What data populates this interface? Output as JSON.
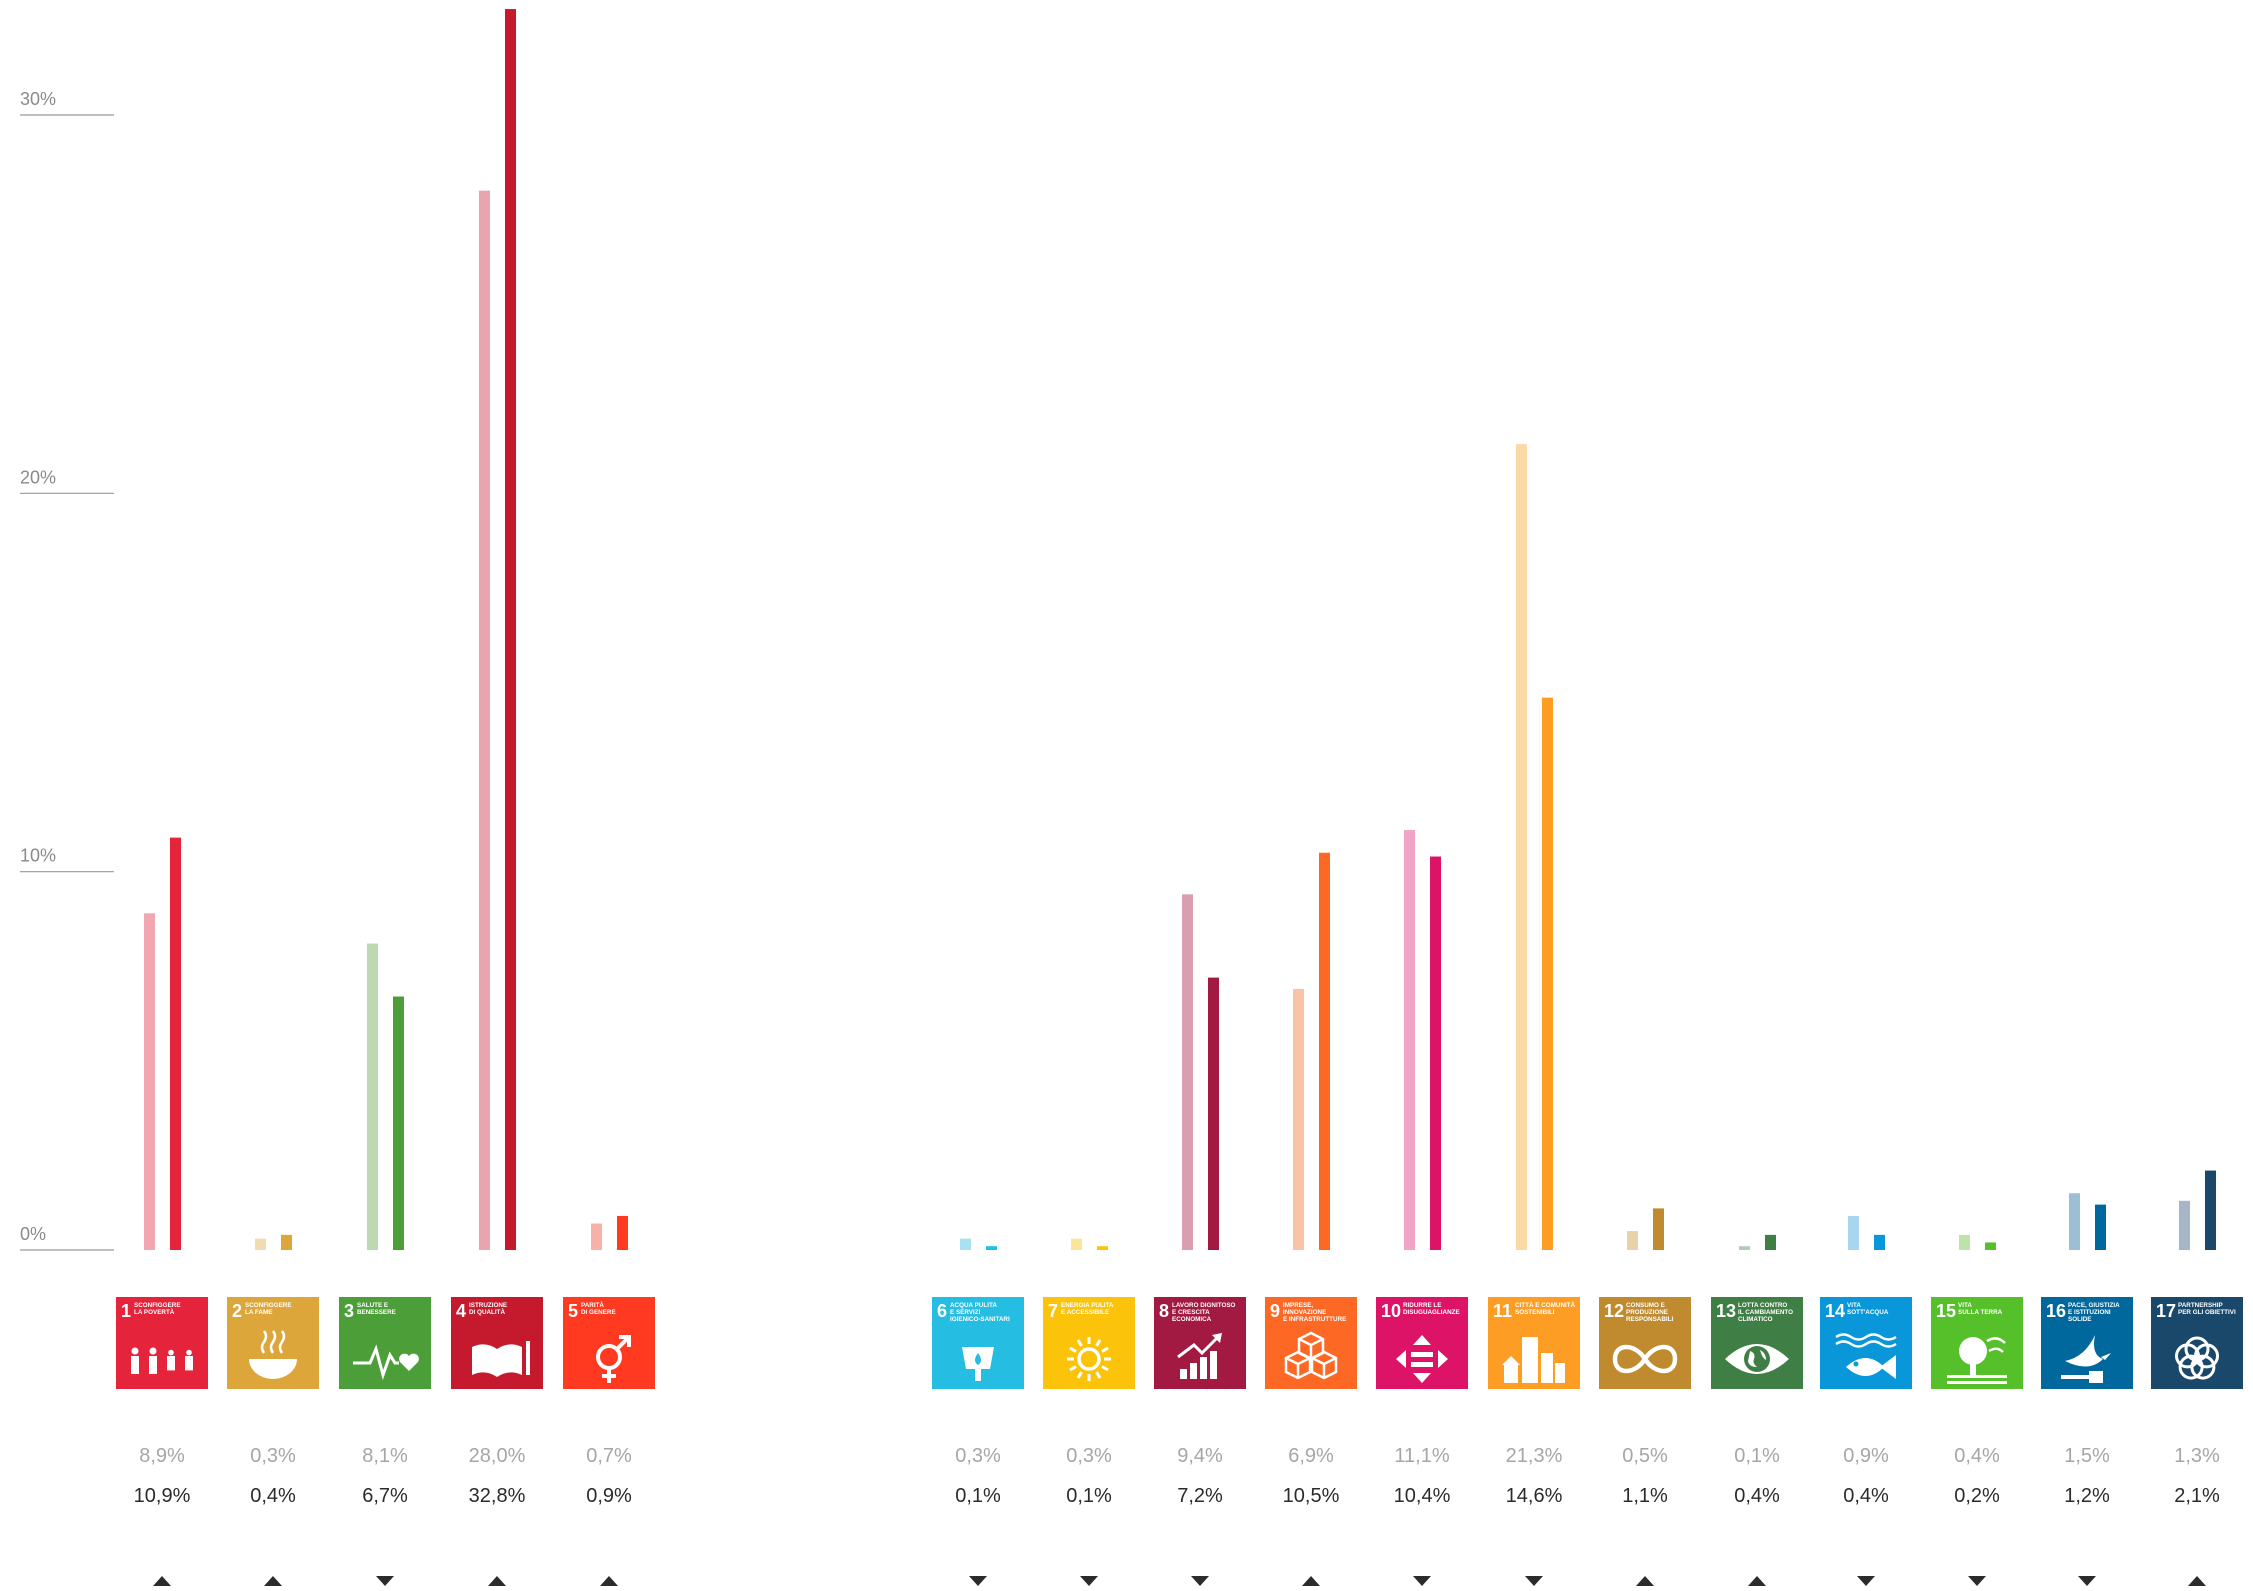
{
  "chart_data": {
    "type": "bar",
    "ylim": [
      0,
      32.8
    ],
    "y_ticks": [
      {
        "value": 30,
        "label": "30%"
      },
      {
        "value": 20,
        "label": "20%"
      },
      {
        "value": 10,
        "label": "10%"
      },
      {
        "value": 0,
        "label": "0%"
      }
    ],
    "grid": false,
    "series": [
      {
        "id": "previous",
        "values": [
          8.9,
          0.3,
          8.1,
          28.0,
          0.7,
          0.3,
          0.3,
          9.4,
          6.9,
          11.1,
          21.3,
          0.5,
          0.1,
          0.9,
          0.4,
          1.5,
          1.3
        ]
      },
      {
        "id": "current",
        "values": [
          10.9,
          0.4,
          6.7,
          32.8,
          0.9,
          0.1,
          0.1,
          7.2,
          10.5,
          10.4,
          14.6,
          1.1,
          0.4,
          0.4,
          0.2,
          1.2,
          2.1
        ]
      }
    ],
    "goals": [
      {
        "n": "1",
        "title": [
          "SCONFIGGERE",
          "LA POVERTÀ"
        ],
        "color": "#e5243b",
        "light": "#f2a7b0",
        "prev_label": "8,9%",
        "curr_label": "10,9%",
        "trend": "up",
        "icon": "family-icon"
      },
      {
        "n": "2",
        "title": [
          "SCONFIGGERE",
          "LA FAME"
        ],
        "color": "#dda63a",
        "light": "#f1dbb0",
        "prev_label": "0,3%",
        "curr_label": "0,4%",
        "trend": "up",
        "icon": "bowl-icon"
      },
      {
        "n": "3",
        "title": [
          "SALUTE E",
          "BENESSERE"
        ],
        "color": "#4c9f38",
        "light": "#bcd9b2",
        "prev_label": "8,1%",
        "curr_label": "6,7%",
        "trend": "down",
        "icon": "heartbeat-icon"
      },
      {
        "n": "4",
        "title": [
          "ISTRUZIONE",
          "DI QUALITÀ"
        ],
        "color": "#c5192d",
        "light": "#e8a5ad",
        "prev_label": "28,0%",
        "curr_label": "32,8%",
        "trend": "up",
        "icon": "book-icon"
      },
      {
        "n": "5",
        "title": [
          "PARITÀ",
          "DI GENERE"
        ],
        "color": "#ff3a21",
        "light": "#f7b1a8",
        "prev_label": "0,7%",
        "curr_label": "0,9%",
        "trend": "up",
        "icon": "gender-icon"
      },
      {
        "n": "6",
        "title": [
          "ACQUA PULITA",
          "E SERVIZI",
          "IGIENICO-SANITARI"
        ],
        "color": "#26bde2",
        "light": "#a8e2f1",
        "prev_label": "0,3%",
        "curr_label": "0,1%",
        "trend": "down",
        "icon": "water-drop-icon"
      },
      {
        "n": "7",
        "title": [
          "ENERGIA PULITA",
          "E ACCESSIBILE"
        ],
        "color": "#fcc30b",
        "light": "#fbe59c",
        "prev_label": "0,3%",
        "curr_label": "0,1%",
        "trend": "down",
        "icon": "sun-icon"
      },
      {
        "n": "8",
        "title": [
          "LAVORO DIGNITOSO",
          "E CRESCITA",
          "ECONOMICA"
        ],
        "color": "#a21942",
        "light": "#d99fb0",
        "prev_label": "9,4%",
        "curr_label": "7,2%",
        "trend": "down",
        "icon": "growth-chart-icon"
      },
      {
        "n": "9",
        "title": [
          "IMPRESE,",
          "INNOVAZIONE",
          "E INFRASTRUTTURE"
        ],
        "color": "#fd6925",
        "light": "#f8c3a6",
        "prev_label": "6,9%",
        "curr_label": "10,5%",
        "trend": "up",
        "icon": "cubes-icon"
      },
      {
        "n": "10",
        "title": [
          "RIDURRE LE",
          "DISUGUAGLIANZE"
        ],
        "color": "#dd1367",
        "light": "#f0a5c6",
        "prev_label": "11,1%",
        "curr_label": "10,4%",
        "trend": "down",
        "icon": "equality-icon"
      },
      {
        "n": "11",
        "title": [
          "CITTÀ E COMUNITÀ",
          "SOSTENIBILI"
        ],
        "color": "#fd9d24",
        "light": "#fbd9a4",
        "prev_label": "21,3%",
        "curr_label": "14,6%",
        "trend": "down",
        "icon": "buildings-icon"
      },
      {
        "n": "12",
        "title": [
          "CONSUMO E",
          "PRODUZIONE",
          "RESPONSABILI"
        ],
        "color": "#bf8b2e",
        "light": "#e8d2ac",
        "prev_label": "0,5%",
        "curr_label": "1,1%",
        "trend": "up",
        "icon": "infinity-icon"
      },
      {
        "n": "13",
        "title": [
          "LOTTA CONTRO",
          "IL CAMBIAMENTO",
          "CLIMATICO"
        ],
        "color": "#3f7e44",
        "light": "#b0cdb2",
        "prev_label": "0,1%",
        "curr_label": "0,4%",
        "trend": "up",
        "icon": "eye-globe-icon"
      },
      {
        "n": "14",
        "title": [
          "VITA",
          "SOTT'ACQUA"
        ],
        "color": "#0a97d9",
        "light": "#a9d6ef",
        "prev_label": "0,9%",
        "curr_label": "0,4%",
        "trend": "down",
        "icon": "fish-icon"
      },
      {
        "n": "15",
        "title": [
          "VITA",
          "SULLA TERRA"
        ],
        "color": "#56c02b",
        "light": "#bde3ab",
        "prev_label": "0,4%",
        "curr_label": "0,2%",
        "trend": "down",
        "icon": "tree-icon"
      },
      {
        "n": "16",
        "title": [
          "PACE, GIUSTIZIA",
          "E ISTITUZIONI",
          "SOLIDE"
        ],
        "color": "#00689d",
        "light": "#9dbfd6",
        "prev_label": "1,5%",
        "curr_label": "1,2%",
        "trend": "down",
        "icon": "dove-icon"
      },
      {
        "n": "17",
        "title": [
          "PARTNERSHIP",
          "PER GLI OBIETTIVI"
        ],
        "color": "#19486a",
        "light": "#a6b6c7",
        "prev_label": "1,3%",
        "curr_label": "2,1%",
        "trend": "up",
        "icon": "rings-icon"
      }
    ]
  }
}
